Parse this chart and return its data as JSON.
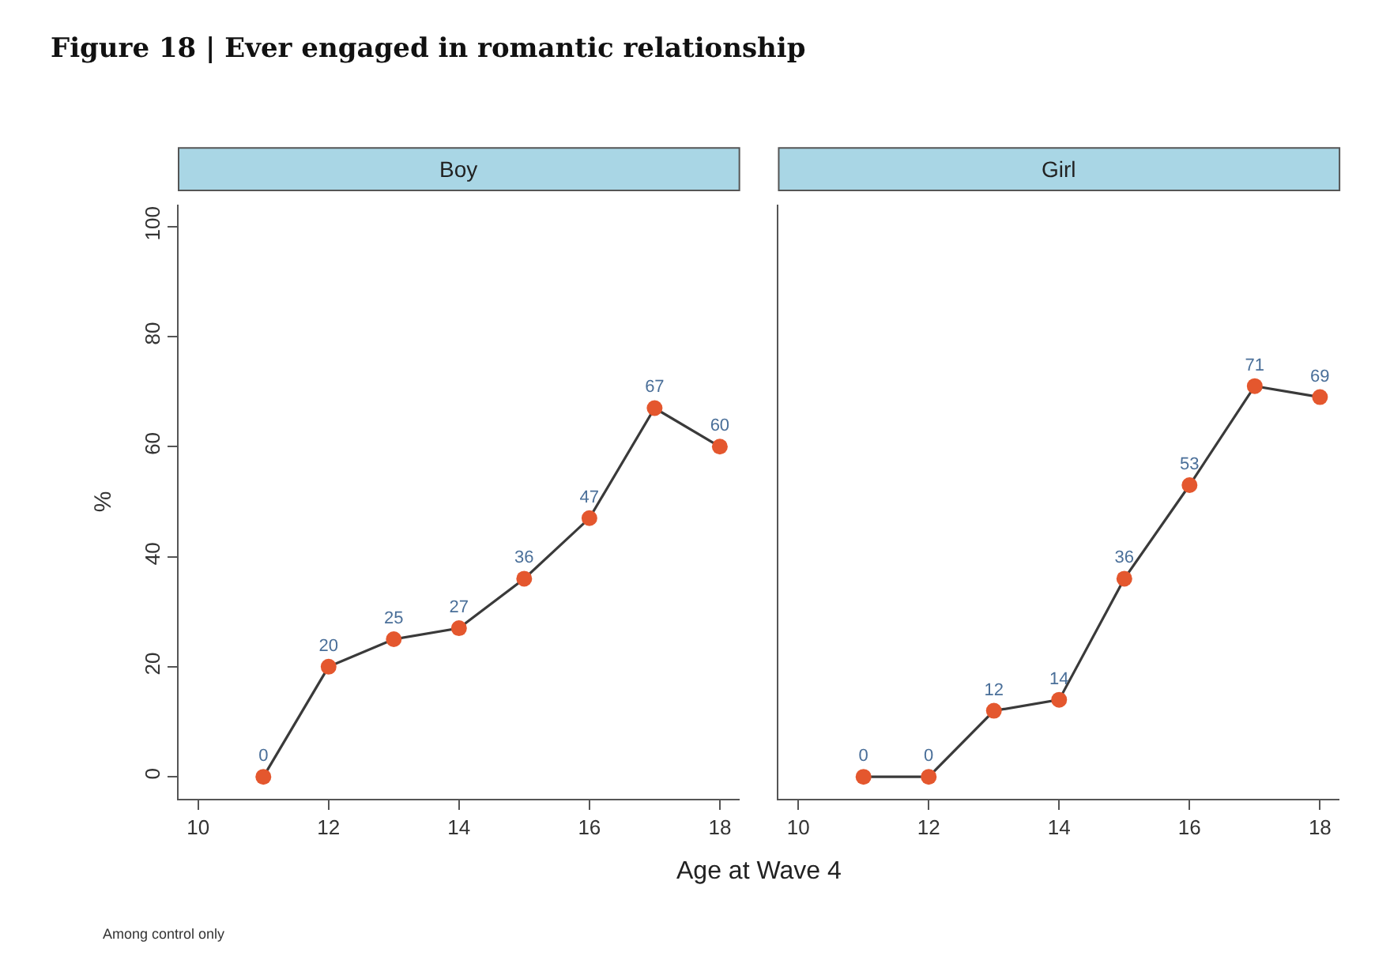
{
  "chart_data": [
    {
      "type": "line",
      "title": "Figure 18 | Ever engaged in romantic relationship",
      "subtitle": "Boy",
      "xlabel": "Age at Wave 4",
      "ylabel": "%",
      "annotations": [
        "Among control only"
      ],
      "x": [
        11,
        12,
        13,
        14,
        15,
        16,
        17,
        18
      ],
      "series": [
        {
          "color": "#e4572e",
          "values": [
            0,
            20,
            25,
            27,
            36,
            47,
            67,
            60
          ]
        }
      ],
      "xlim": [
        9.7,
        18.3
      ],
      "xticks": [
        10,
        12,
        14,
        16,
        18
      ],
      "ylim": [
        -4,
        104
      ],
      "yticks": [
        0,
        20,
        40,
        60,
        80,
        100
      ],
      "data_labels": true,
      "marker": "circle",
      "line_style": "solid"
    },
    {
      "type": "line",
      "subtitle": "Girl",
      "x": [
        11,
        12,
        13,
        14,
        15,
        16,
        17,
        18
      ],
      "series": [
        {
          "color": "#e4572e",
          "values": [
            0,
            0,
            12,
            14,
            36,
            53,
            71,
            69
          ]
        }
      ],
      "xlim": [
        9.7,
        18.3
      ],
      "xticks": [
        10,
        12,
        14,
        16,
        18
      ],
      "ylim": [
        -4,
        104
      ],
      "yticks": [
        0,
        20,
        40,
        60,
        80,
        100
      ],
      "data_labels": true,
      "marker": "circle",
      "line_style": "solid",
      "tick_labels": "x"
    }
  ]
}
